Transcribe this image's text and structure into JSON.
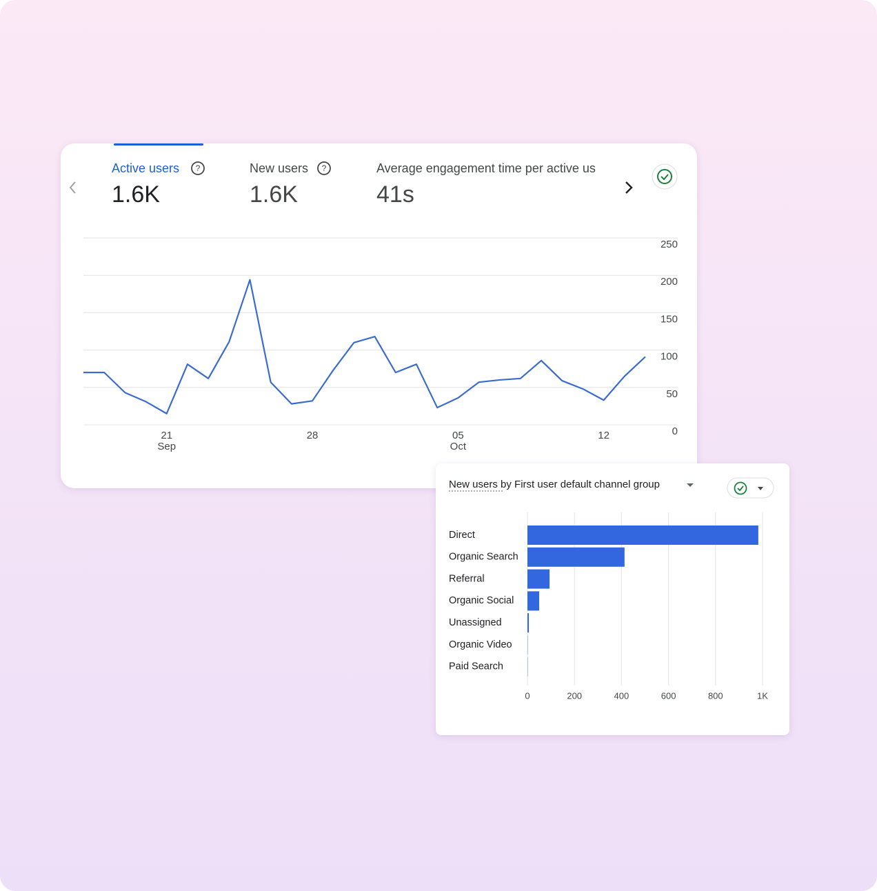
{
  "metrics": [
    {
      "label": "Active users",
      "value": "1.6K"
    },
    {
      "label": "New users",
      "value": "1.6K"
    },
    {
      "label": "Average engagement time per active us",
      "value": "41s"
    }
  ],
  "chart_data": [
    {
      "type": "line",
      "categories": [
        null,
        null,
        null,
        null,
        "21 Sep",
        null,
        null,
        null,
        null,
        null,
        null,
        "28",
        null,
        null,
        null,
        null,
        null,
        null,
        "05 Oct",
        null,
        null,
        null,
        null,
        null,
        null,
        "12",
        null,
        null
      ],
      "series": [
        {
          "name": "Active users",
          "color": "#3a6bd1",
          "values": [
            70,
            70,
            43,
            31,
            15,
            81,
            62,
            111,
            194,
            57,
            28,
            32,
            73,
            110,
            118,
            70,
            81,
            23,
            36,
            57,
            60,
            62,
            86,
            59,
            48,
            33,
            65,
            91
          ]
        }
      ],
      "ylim": [
        0,
        250
      ],
      "yticks": [
        0,
        50,
        100,
        150,
        200,
        250
      ],
      "grid": true
    },
    {
      "type": "hbar",
      "title": {
        "metric": "New users",
        "rest": "by First user default channel group"
      },
      "categories": [
        "Direct",
        "Organic Search",
        "Referral",
        "Organic Social",
        "Unassigned",
        "Organic Video",
        "Paid Search"
      ],
      "values": [
        982,
        413,
        94,
        50,
        6,
        1,
        1
      ],
      "color": "#3367e0",
      "xlim": [
        0,
        1000
      ],
      "xticks": [
        0,
        200,
        400,
        600,
        800,
        {
          "value": 1000,
          "label": "1K"
        }
      ],
      "grid": true
    }
  ]
}
